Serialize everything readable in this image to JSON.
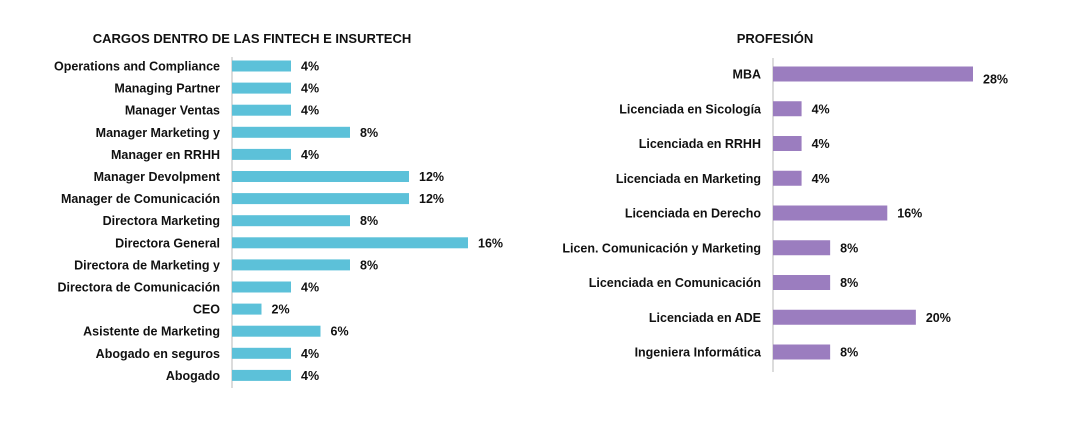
{
  "chart_data": [
    {
      "type": "bar",
      "orientation": "horizontal",
      "title": "CARGOS DENTRO DE LAS FINTECH E INSURTECH",
      "color": "#5cc1d9",
      "categories": [
        "Operations and Compliance",
        "Managing Partner",
        "Manager Ventas",
        "Manager Marketing y",
        "Manager en RRHH",
        "Manager Devolpment",
        "Manager de Comunicación",
        "Directora Marketing",
        "Directora General",
        "Directora de Marketing y",
        "Directora de Comunicación",
        "CEO",
        "Asistente de Marketing",
        "Abogado en seguros",
        "Abogado"
      ],
      "values": [
        4,
        4,
        4,
        8,
        4,
        12,
        12,
        8,
        16,
        8,
        4,
        2,
        6,
        4,
        4
      ],
      "labels": [
        "4%",
        "4%",
        "4%",
        "8%",
        "4%",
        "12%",
        "12%",
        "8%",
        "16%",
        "8%",
        "4%",
        "2%",
        "6%",
        "4%",
        "4%"
      ],
      "unit": "%",
      "xlim": [
        0,
        16
      ],
      "grid": false
    },
    {
      "type": "bar",
      "orientation": "horizontal",
      "title": "PROFESIÓN",
      "color": "#9b7dbf",
      "categories": [
        "MBA",
        "Licenciada en Sicología",
        "Licenciada en RRHH",
        "Licenciada en Marketing",
        "Licenciada en Derecho",
        "Licen. Comunicación y Marketing",
        "Licenciada en Comunicación",
        "Licenciada en ADE",
        "Ingeniera Informática"
      ],
      "values": [
        28,
        4,
        4,
        4,
        16,
        8,
        8,
        20,
        8
      ],
      "labels": [
        "28%",
        "4%",
        "4%",
        "4%",
        "16%",
        "8%",
        "8%",
        "20%",
        "8%"
      ],
      "unit": "%",
      "xlim": [
        0,
        28
      ],
      "grid": false
    }
  ]
}
